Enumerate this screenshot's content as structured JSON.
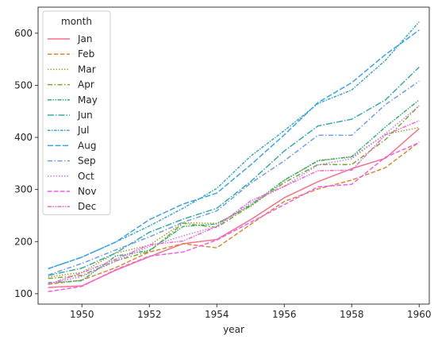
{
  "chart_data": {
    "type": "line",
    "xlabel": "year",
    "ylabel": "",
    "xlim": [
      1948.7,
      1960.3
    ],
    "ylim": [
      80,
      650
    ],
    "xticks": [
      1950,
      1952,
      1954,
      1956,
      1958,
      1960
    ],
    "yticks": [
      100,
      200,
      300,
      400,
      500,
      600
    ],
    "x": [
      1949,
      1950,
      1951,
      1952,
      1953,
      1954,
      1955,
      1956,
      1957,
      1958,
      1959,
      1960
    ],
    "legend": {
      "title": "month",
      "position": "upper-left"
    },
    "series": [
      {
        "name": "Jan",
        "color": "#f77189",
        "dash": "solid",
        "values": [
          112,
          115,
          145,
          171,
          196,
          204,
          242,
          284,
          315,
          340,
          360,
          417
        ]
      },
      {
        "name": "Feb",
        "color": "#dc8932",
        "dash": "dashed",
        "values": [
          118,
          126,
          150,
          180,
          196,
          188,
          233,
          277,
          301,
          318,
          342,
          391
        ]
      },
      {
        "name": "Mar",
        "color": "#ae9d31",
        "dash": "dotted",
        "values": [
          132,
          141,
          178,
          193,
          236,
          235,
          267,
          317,
          356,
          362,
          406,
          419
        ]
      },
      {
        "name": "Apr",
        "color": "#77ab31",
        "dash": "dashdot",
        "values": [
          129,
          135,
          163,
          181,
          235,
          227,
          269,
          313,
          348,
          348,
          396,
          461
        ]
      },
      {
        "name": "May",
        "color": "#33b07a",
        "dash": "ddot",
        "values": [
          121,
          125,
          172,
          183,
          229,
          234,
          270,
          318,
          355,
          363,
          420,
          472
        ]
      },
      {
        "name": "Jun",
        "color": "#36ada4",
        "dash": "dlong",
        "values": [
          135,
          149,
          178,
          218,
          243,
          264,
          315,
          374,
          422,
          435,
          472,
          535
        ]
      },
      {
        "name": "Jul",
        "color": "#38a9c5",
        "dash": "ldot",
        "values": [
          148,
          170,
          199,
          230,
          264,
          302,
          364,
          413,
          465,
          491,
          548,
          622
        ]
      },
      {
        "name": "Aug",
        "color": "#3ba3ec",
        "dash": "dmed",
        "values": [
          148,
          170,
          199,
          242,
          272,
          293,
          347,
          405,
          467,
          505,
          559,
          606
        ]
      },
      {
        "name": "Sep",
        "color": "#6e9bf4",
        "dash": "dashdot",
        "values": [
          136,
          158,
          184,
          209,
          237,
          259,
          312,
          355,
          404,
          404,
          463,
          508
        ]
      },
      {
        "name": "Oct",
        "color": "#cc7af4",
        "dash": "dotted",
        "values": [
          119,
          133,
          162,
          191,
          211,
          229,
          274,
          306,
          347,
          359,
          407,
          461
        ]
      },
      {
        "name": "Nov",
        "color": "#f45cec",
        "dash": "dashed",
        "values": [
          104,
          114,
          146,
          172,
          180,
          203,
          237,
          271,
          305,
          310,
          362,
          390
        ]
      },
      {
        "name": "Dec",
        "color": "#f565cc",
        "dash": "ddot",
        "values": [
          118,
          140,
          166,
          194,
          201,
          229,
          278,
          306,
          336,
          337,
          405,
          432
        ]
      }
    ]
  }
}
